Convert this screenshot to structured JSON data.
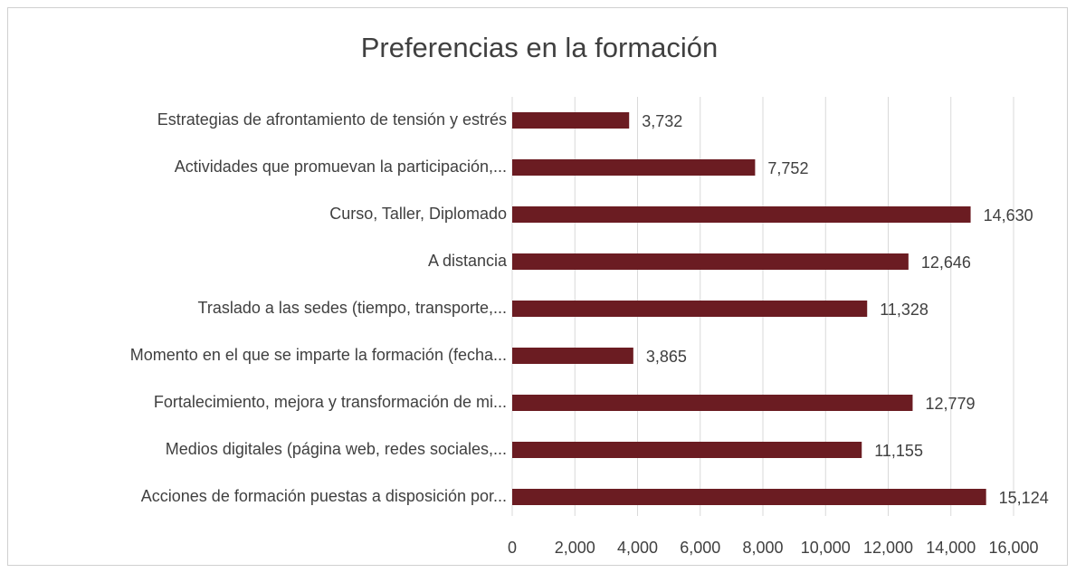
{
  "chart_data": {
    "type": "bar",
    "orientation": "horizontal",
    "title": "Preferencias en la formación",
    "categories": [
      "Estrategias de afrontamiento de tensión y estrés",
      "Actividades que promuevan la participación,...",
      "Curso, Taller, Diplomado",
      "A distancia",
      "Traslado a las sedes (tiempo, transporte,...",
      "Momento en el que se imparte la formación (fecha...",
      "Fortalecimiento, mejora y transformación de mi...",
      "Medios digitales (página web, redes sociales,...",
      "Acciones de formación puestas a disposición por..."
    ],
    "values": [
      3732,
      7752,
      14630,
      12646,
      11328,
      3865,
      12779,
      11155,
      15124
    ],
    "value_labels": [
      "3,732",
      "7,752",
      "14,630",
      "12,646",
      "11,328",
      "3,865",
      "12,779",
      "11,155",
      "15,124"
    ],
    "color": "#6b1c22",
    "xlim": [
      0,
      16000
    ],
    "xticks": [
      0,
      {
        "value": 2000,
        "label": "2,000"
      },
      {
        "value": 4000,
        "label": "4,000"
      },
      {
        "value": 6000,
        "label": "6,000"
      },
      {
        "value": 8000,
        "label": "8,000"
      },
      {
        "value": 10000,
        "label": "10,000"
      },
      {
        "value": 12000,
        "label": "12,000"
      },
      {
        "value": 14000,
        "label": "14,000"
      },
      {
        "value": 16000,
        "label": "16,000"
      }
    ],
    "grid": true
  }
}
